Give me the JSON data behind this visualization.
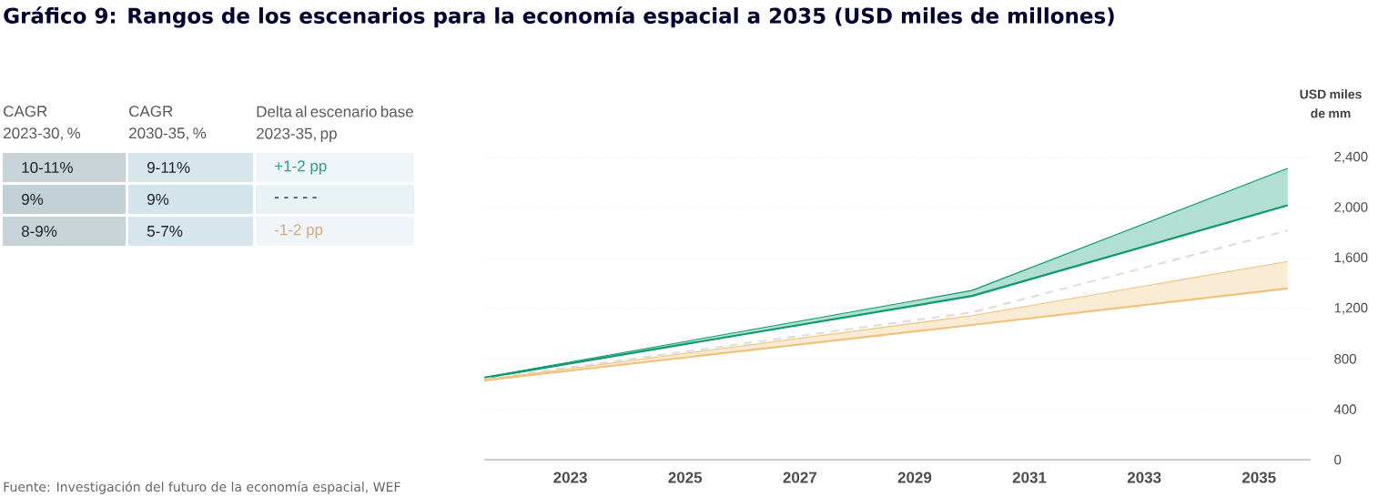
{
  "chart_data": {
    "type": "line",
    "title": "Gráfico 9: Rangos de los escenarios para la economía espacial a 2035 (USD miles de millones)",
    "ylabel": "USD miles de mm",
    "x": [
      2021.5,
      2030,
      2035.5
    ],
    "xlim": [
      2021.5,
      2035.9
    ],
    "xticks": [
      2023,
      2025,
      2027,
      2029,
      2031,
      2033,
      2035
    ],
    "ylim": [
      0,
      2400
    ],
    "yticks": [
      {
        "value": 0,
        "label": "0"
      },
      {
        "value": 400,
        "label": "400"
      },
      {
        "value": 800,
        "label": "800"
      },
      {
        "value": 1200,
        "label": "1,200"
      },
      {
        "value": 1600,
        "label": "1,600"
      },
      {
        "value": 2000,
        "label": "2,000"
      },
      {
        "value": 2400,
        "label": "2,400"
      }
    ],
    "grid": "y",
    "series": [
      {
        "color": "#0a9a6e",
        "values": [
          650,
          1340,
          2310
        ]
      },
      {
        "color": "#0a9a6e",
        "values": [
          650,
          1300,
          2020
        ],
        "lower": [
          650,
          1300,
          2020
        ],
        "upper": [
          650,
          1340,
          2310
        ]
      },
      {
        "color": "#dedede",
        "values": [
          640,
          1170,
          1820
        ],
        "line_style": "dashed"
      },
      {
        "color": "#f0c27a",
        "values": [
          630,
          1140,
          1570
        ]
      },
      {
        "color": "#f0c27a",
        "values": [
          630,
          1070,
          1360
        ],
        "lower": [
          630,
          1070,
          1360
        ],
        "upper": [
          630,
          1140,
          1570
        ]
      }
    ],
    "annotations": [
      "CAGR 2023-30, %",
      "CAGR 2030-35, %",
      "Delta al escenario base 2023-35, pp",
      "10-11%",
      "9-11%",
      "+1-2 pp",
      "9%",
      "9%",
      "- - - - -",
      "8-9%",
      "5-7%",
      "-1-2 pp",
      "Fuente: Investigación del futuro de la economía espacial, WEF"
    ]
  }
}
